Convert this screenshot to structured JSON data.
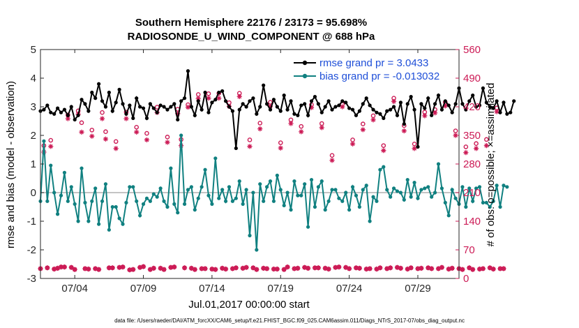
{
  "chart_data": {
    "type": "line",
    "title": "Southern Hemisphere 22176 / 23173 = 95.698%",
    "subtitle": "RADIOSONDE_U_WIND_COMPONENT @ 688 hPa",
    "xlabel": "Jul.01,2017 00:00:00 start",
    "ylabel_left": "rmse and bias (model - observation)",
    "ylabel_right": "# of obs: o=possible; ×=assimilated",
    "footer": "data file: /Users/raeder/DAI/ATM_forcXX/CAM6_setup/f.e21.FHIST_BGC.f09_025.CAM6assim.011/Diags_NTrS_2017-07/obs_diag_output.nc",
    "xlim": [
      1.5,
      32.0
    ],
    "x_ticks": [
      4,
      9,
      14,
      19,
      24,
      29
    ],
    "x_tick_labels": [
      "07/04",
      "07/09",
      "07/14",
      "07/19",
      "07/24",
      "07/29"
    ],
    "ylim_left": [
      -3,
      5
    ],
    "y_ticks_left": [
      "-3",
      "-2",
      "-1",
      "0",
      "1",
      "2",
      "3",
      "4",
      "5"
    ],
    "ylim_right": [
      0,
      560
    ],
    "y_ticks_right": [
      "0",
      "70",
      "140",
      "210",
      "280",
      "350",
      "420",
      "490",
      "560"
    ],
    "colors": {
      "rmse": "#000000",
      "bias": "#108080",
      "obs": "#cc1a55",
      "zero": "#b0b0b0",
      "legend_text": "#1f4fd8",
      "right_axis": "#cc1a55"
    },
    "series": [
      {
        "name": "rmse grand pr = 3.0433",
        "axis": "left",
        "x_start": 1.5,
        "x_step": 0.25,
        "values": [
          2.85,
          2.9,
          3.05,
          2.8,
          2.75,
          2.95,
          2.8,
          2.9,
          2.7,
          3.0,
          2.55,
          2.7,
          3.25,
          3.1,
          2.85,
          3.5,
          3.3,
          3.8,
          3.2,
          3.0,
          3.5,
          2.85,
          3.15,
          3.6,
          3.1,
          2.75,
          3.05,
          2.6,
          3.3,
          3.0,
          2.95,
          2.6,
          3.1,
          2.95,
          2.8,
          3.05,
          3.0,
          2.9,
          3.0,
          3.1,
          2.55,
          3.2,
          3.3,
          4.25,
          3.0,
          2.7,
          3.2,
          2.9,
          3.5,
          2.8,
          3.15,
          3.25,
          3.5,
          3.55,
          3.2,
          3.0,
          2.85,
          1.55,
          2.9,
          3.1,
          3.0,
          3.2,
          3.3,
          2.75,
          3.0,
          3.75,
          3.1,
          2.9,
          3.25,
          3.0,
          2.85,
          3.4,
          2.9,
          3.2,
          2.75,
          2.7,
          3.05,
          3.1,
          2.7,
          3.2,
          3.35,
          3.1,
          2.8,
          3.0,
          3.2,
          2.9,
          3.0,
          3.05,
          3.2,
          3.15,
          2.95,
          2.9,
          2.7,
          2.85,
          3.1,
          3.3,
          3.05,
          2.9,
          2.8,
          2.75,
          2.6,
          2.85,
          2.9,
          3.0,
          2.7,
          3.15,
          2.4,
          3.1,
          3.35,
          2.9,
          1.6,
          3.1,
          2.95,
          3.3,
          2.7,
          3.1,
          3.4,
          2.9,
          3.2,
          3.05,
          2.8,
          3.1,
          3.65,
          3.1,
          2.9,
          3.2,
          3.4,
          3.0,
          3.05,
          3.65,
          3.15,
          3.0,
          2.95,
          3.2,
          2.8,
          3.15,
          2.75,
          2.8,
          3.2
        ]
      },
      {
        "name": "bias grand pr = -0.013032",
        "axis": "left",
        "x_start": 1.5,
        "x_step": 0.25,
        "values": [
          -0.3,
          1.8,
          -0.3,
          0.95,
          0.0,
          -0.75,
          -0.1,
          0.7,
          -0.3,
          0.2,
          -0.4,
          -1.0,
          0.85,
          -0.35,
          -1.0,
          -0.3,
          0.15,
          -1.1,
          -0.3,
          0.3,
          -1.3,
          -0.5,
          -0.5,
          -0.9,
          -1.1,
          -0.35,
          0.2,
          0.2,
          -0.3,
          -0.8,
          -0.4,
          -0.2,
          -0.3,
          -0.05,
          -0.15,
          0.15,
          -0.3,
          -0.5,
          0.85,
          -0.4,
          -0.7,
          2.0,
          -0.4,
          0.1,
          0.2,
          -0.6,
          -0.2,
          0.2,
          0.8,
          -0.1,
          -0.4,
          1.2,
          -0.2,
          0.1,
          -0.3,
          0.2,
          -0.3,
          -0.2,
          0.4,
          -0.4,
          0.1,
          -1.5,
          0.0,
          -2.0,
          0.3,
          -0.3,
          0.2,
          0.4,
          -0.3,
          0.6,
          0.1,
          -0.45,
          0.0,
          -0.6,
          0.4,
          -0.1,
          -0.1,
          0.3,
          -1.2,
          0.45,
          -0.5,
          0.2,
          0.4,
          -0.6,
          -0.3,
          0.1,
          0.1,
          -0.2,
          -0.3,
          0.0,
          -0.6,
          0.2,
          -0.1,
          -0.5,
          0.1,
          0.25,
          -1.0,
          -0.15,
          -0.3,
          0.8,
          0.9,
          0.1,
          -0.15,
          0.15,
          0.05,
          0.0,
          -0.25,
          0.45,
          -0.15,
          0.35,
          -0.2,
          0.1,
          0.15,
          0.2,
          -0.15,
          0.0,
          1.0,
          0.15,
          -0.35,
          -0.8,
          0.1,
          -0.2,
          -0.4,
          0.2,
          -0.5,
          0.15,
          -0.3,
          0.15,
          0.2,
          -0.35,
          -0.35,
          -0.5,
          -0.3,
          0.25,
          -0.5,
          0.25,
          0.2
        ]
      },
      {
        "name": "possible",
        "axis": "right",
        "marker": "o",
        "x_start": 1.5,
        "x_step": 0.25,
        "values": [
          24,
          325,
          26,
          338,
          23,
          25,
          28,
          28,
          400,
          27,
          22,
          410,
          381,
          24,
          23,
          363,
          24,
          22,
          406,
          359,
          26,
          26,
          335,
          27,
          28,
          407,
          21,
          22,
          370,
          27,
          29,
          355,
          22,
          25,
          419,
          25,
          22,
          346,
          27,
          28,
          414,
          340,
          26,
          425,
          25,
          22,
          450,
          24,
          24,
          452,
          23,
          22,
          453,
          25,
          23,
          430,
          24,
          26,
          453,
          25,
          27,
          339,
          26,
          22,
          380,
          25,
          24,
          431,
          23,
          23,
          332,
          22,
          28,
          388,
          24,
          25,
          372,
          27,
          25,
          425,
          26,
          26,
          379,
          25,
          23,
          301,
          27,
          28,
          426,
          27,
          24,
          339,
          26,
          25,
          378,
          23,
          24,
          398,
          23,
          26,
          325,
          24,
          26,
          441,
          27,
          25,
          374,
          23,
          26,
          329,
          24,
          25,
          407,
          26,
          24,
          413,
          24,
          27,
          431,
          23,
          25,
          361,
          24,
          22,
          322,
          26,
          22,
          330,
          23,
          24,
          340,
          26,
          23,
          417,
          24,
          24
        ]
      },
      {
        "name": "assimilated",
        "axis": "right",
        "marker": "x",
        "x_start": 1.5,
        "x_step": 0.25,
        "values": [
          24,
          309,
          26,
          323,
          23,
          25,
          28,
          28,
          391,
          27,
          22,
          402,
          358,
          24,
          23,
          348,
          24,
          22,
          391,
          341,
          26,
          26,
          318,
          27,
          28,
          391,
          21,
          22,
          358,
          27,
          29,
          339,
          22,
          25,
          406,
          25,
          22,
          333,
          27,
          28,
          403,
          325,
          26,
          419,
          25,
          22,
          440,
          24,
          24,
          441,
          23,
          22,
          441,
          25,
          23,
          421,
          24,
          26,
          445,
          25,
          27,
          323,
          26,
          22,
          366,
          25,
          24,
          421,
          23,
          23,
          319,
          22,
          28,
          379,
          24,
          25,
          359,
          27,
          25,
          418,
          26,
          26,
          369,
          25,
          23,
          289,
          27,
          28,
          420,
          27,
          24,
          329,
          26,
          25,
          364,
          23,
          24,
          388,
          23,
          26,
          313,
          24,
          26,
          433,
          27,
          25,
          361,
          23,
          26,
          318,
          24,
          25,
          398,
          26,
          24,
          405,
          24,
          27,
          422,
          23,
          25,
          350,
          24,
          22,
          308,
          26,
          22,
          318,
          23,
          24,
          325,
          26,
          23,
          408,
          24,
          24
        ]
      }
    ],
    "legend": {
      "position": "top-right",
      "entries": [
        "rmse grand pr = 3.0433",
        "bias grand pr = -0.013032"
      ]
    }
  }
}
